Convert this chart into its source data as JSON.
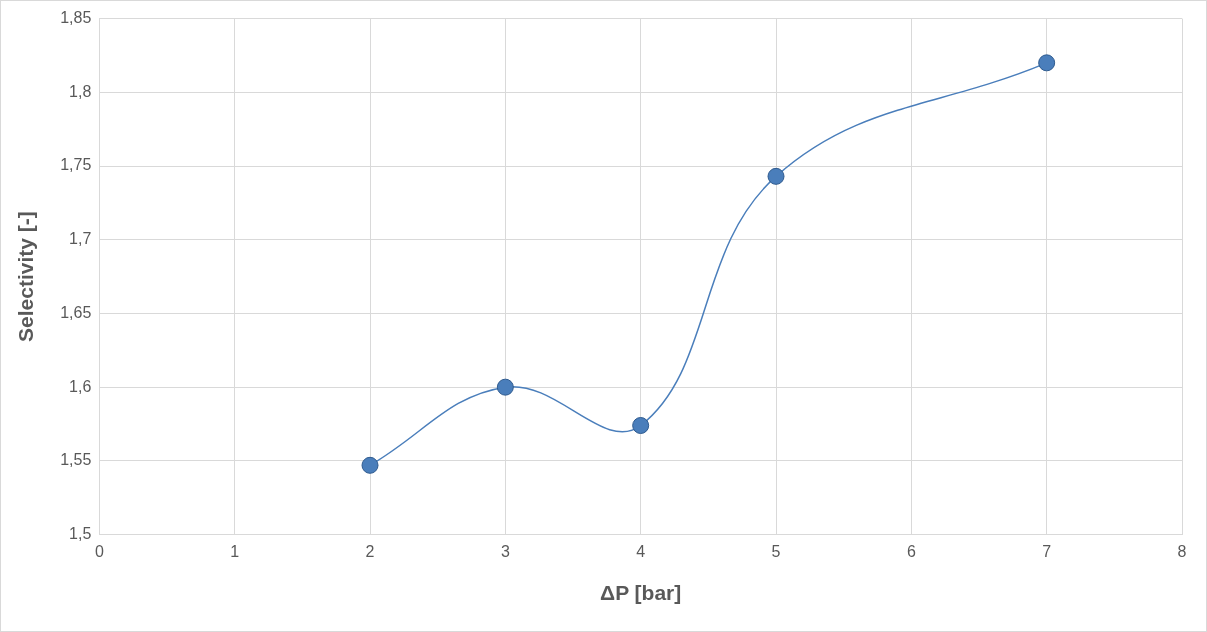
{
  "chart_data": {
    "type": "line",
    "xlabel": "ΔP [bar]",
    "ylabel": "Selectivity [-]",
    "x": [
      2,
      3,
      4,
      5,
      7
    ],
    "series": [
      {
        "color": "#4a7ebb",
        "values": [
          1.547,
          1.6,
          1.574,
          1.743,
          1.82
        ]
      }
    ],
    "xlim": [
      0,
      8
    ],
    "xticks": [
      0,
      1,
      2,
      3,
      4,
      5,
      6,
      7,
      8
    ],
    "ylim": [
      1.5,
      1.85
    ],
    "yticks": [
      {
        "value": 1.5,
        "label": "1,5"
      },
      {
        "value": 1.55,
        "label": "1,55"
      },
      {
        "value": 1.6,
        "label": "1,6"
      },
      {
        "value": 1.65,
        "label": "1,65"
      },
      {
        "value": 1.7,
        "label": "1,7"
      },
      {
        "value": 1.75,
        "label": "1,75"
      },
      {
        "value": 1.8,
        "label": "1,8"
      },
      {
        "value": 1.85,
        "label": "1,85"
      }
    ],
    "grid": true,
    "marker": "circle",
    "line_style": "solid",
    "legend": false
  }
}
